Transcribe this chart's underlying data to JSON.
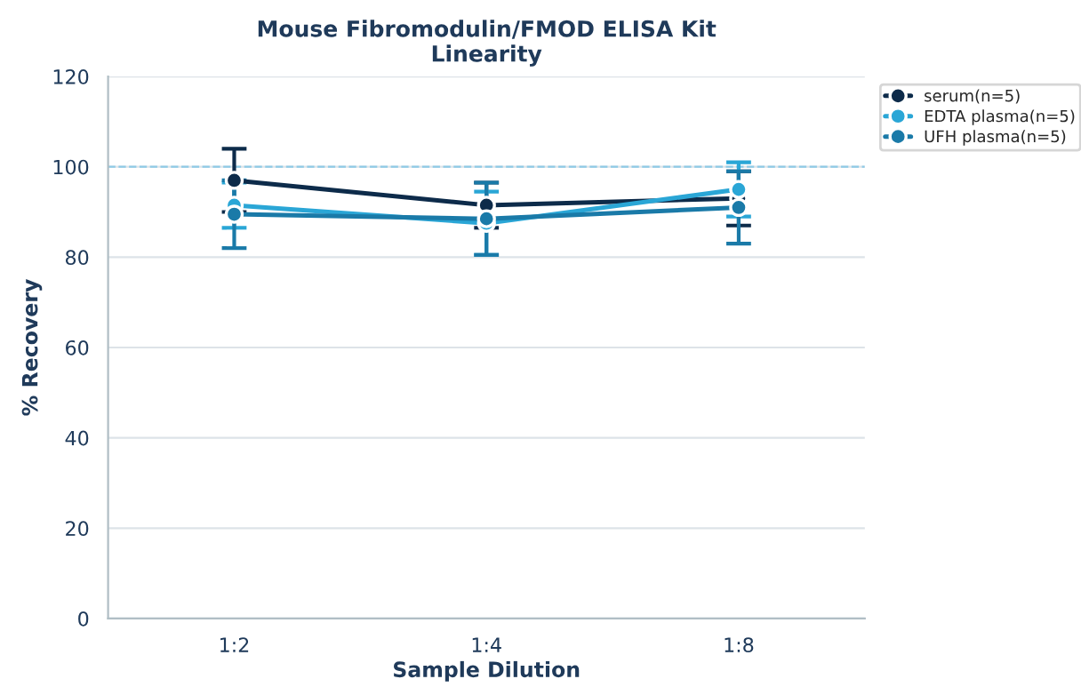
{
  "chart_data": {
    "type": "line",
    "title": "Mouse Fibromodulin/FMOD ELISA Kit\nLinearity",
    "xlabel": "Sample Dilution",
    "ylabel": "% Recovery",
    "categories": [
      "1:2",
      "1:4",
      "1:8"
    ],
    "series": [
      {
        "name": "serum(n=5)",
        "color": "#0d2b4a",
        "values": [
          97,
          91.5,
          93
        ],
        "errors": [
          7,
          5,
          6
        ]
      },
      {
        "name": "EDTA plasma(n=5)",
        "color": "#2aa6d6",
        "values": [
          91.5,
          87.5,
          95
        ],
        "errors": [
          5,
          7,
          6
        ]
      },
      {
        "name": "UFH plasma(n=5)",
        "color": "#1a7aa8",
        "values": [
          89.5,
          88.5,
          91
        ],
        "errors": [
          7.5,
          8,
          8
        ]
      }
    ],
    "ylim": [
      0,
      120
    ],
    "yticks": [
      0,
      20,
      40,
      60,
      80,
      100,
      120
    ],
    "ref_lines": [
      {
        "axis": "y",
        "value": 100,
        "color": "#8ecae6",
        "line_style": "dashed"
      }
    ],
    "grid": "y",
    "legend": "top right",
    "marker": "circle",
    "line_style": "solid"
  }
}
